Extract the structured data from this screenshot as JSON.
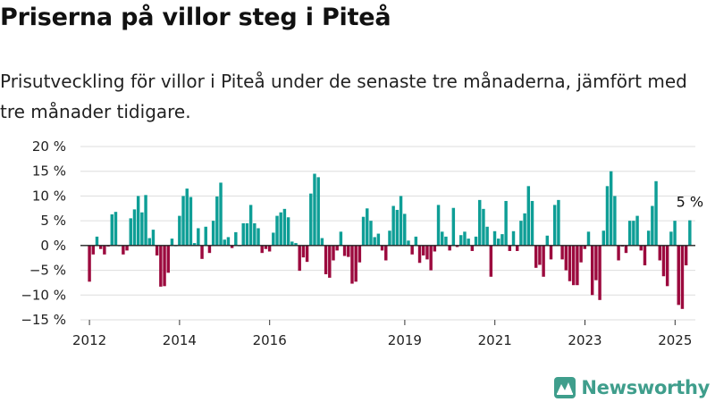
{
  "title": "Priserna på villor steg i Piteå",
  "subtitle": "Prisutveckling för villor i Piteå under de senaste tre månaderna, jämfört med tre månader tidigare.",
  "brand": {
    "name": "Newsworthy"
  },
  "colors": {
    "positive": "#0e9e96",
    "negative": "#9c0a3e",
    "grid": "#dddddd",
    "baseline": "#222222",
    "brand": "#3f9e8c"
  },
  "chart_data": {
    "type": "bar",
    "ylim": [
      -15,
      20
    ],
    "yticks": [
      20,
      15,
      10,
      5,
      0,
      -5,
      -10,
      -15
    ],
    "ytick_labels": [
      "20 %",
      "15 %",
      "10 %",
      "5 %",
      "0 %",
      "−5 %",
      "−10 %",
      "−15 %"
    ],
    "xlim": [
      2011.8,
      2025.45
    ],
    "xticks": [
      2012,
      2014,
      2016,
      2019,
      2021,
      2023,
      2025
    ],
    "xtick_labels": [
      "2012",
      "2014",
      "2016",
      "2019",
      "2021",
      "2023",
      "2025"
    ],
    "start_year": 2012.0,
    "step_years": 0.0833,
    "values": [
      -7.3,
      -1.8,
      1.8,
      -0.7,
      -1.8,
      -0.2,
      6.3,
      6.8,
      0,
      -1.8,
      -1.0,
      5.5,
      7.3,
      10,
      6.7,
      10.2,
      1.5,
      3.2,
      -2,
      -8.3,
      -8.2,
      -5.5,
      1.4,
      0,
      6,
      10,
      11.5,
      9.8,
      0.5,
      3.5,
      -2.7,
      3.8,
      -1.5,
      5,
      9.9,
      12.7,
      1.2,
      1.7,
      -0.5,
      2.7,
      0,
      4.5,
      4.5,
      8.2,
      4.5,
      3.5,
      -1.5,
      -0.7,
      -1.2,
      2.6,
      6,
      6.7,
      7.4,
      5.7,
      0.8,
      0.5,
      -5.1,
      -2.4,
      -3.3,
      10.5,
      14.5,
      13.8,
      1.5,
      -5.8,
      -6.5,
      -3,
      -1,
      2.8,
      -2.1,
      -2.3,
      -7.7,
      -7.3,
      -3.4,
      5.8,
      7.5,
      5,
      1.7,
      2.4,
      -1,
      -3,
      3,
      8,
      7.2,
      10,
      6.4,
      1,
      -1.8,
      1.8,
      -3.5,
      -2,
      -2.8,
      -5,
      -1.2,
      8.2,
      2.8,
      1.8,
      -1,
      7.6,
      -0.3,
      2.1,
      2.8,
      1.4,
      -1.1,
      1.8,
      9.2,
      7.4,
      3.8,
      -6.3,
      2.9,
      1.4,
      2.3,
      9,
      -1.1,
      2.9,
      -1.1,
      5,
      6.5,
      12,
      9,
      -4.5,
      -3.9,
      -6.3,
      2,
      -2.8,
      8.2,
      9.2,
      -2.8,
      -5,
      -7.2,
      -8,
      -8,
      -3.4,
      -0.7,
      2.8,
      -10,
      -7,
      -11,
      3,
      12,
      15,
      10,
      -3,
      -0.2,
      -1.5,
      5,
      5,
      6,
      -1,
      -4,
      3,
      8,
      13,
      -3,
      -6.2,
      -8.2,
      2.8,
      5,
      -12,
      -12.8,
      -4,
      5.1
    ],
    "annotations": [
      {
        "text": "5 %"
      }
    ]
  }
}
